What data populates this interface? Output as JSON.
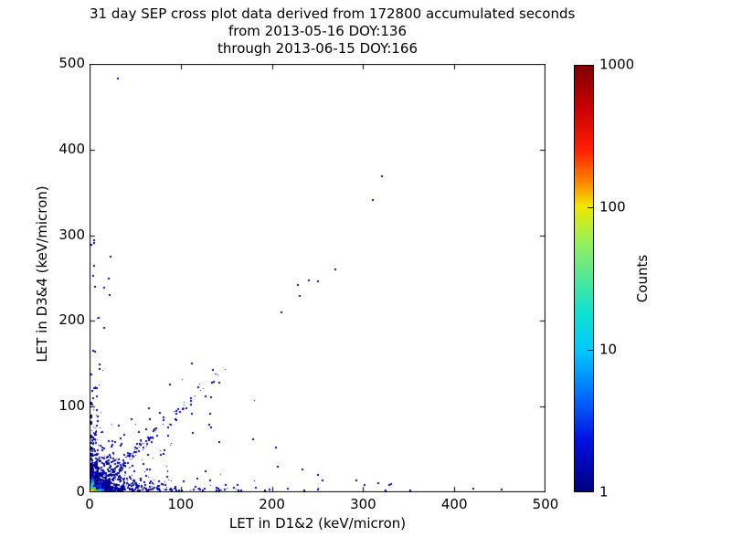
{
  "chart_data": {
    "type": "scatter",
    "title_lines": [
      "31 day SEP cross plot data derived from 172800 accumulated seconds",
      "from 2013-05-16 DOY:136",
      "through 2013-06-15 DOY:166"
    ],
    "xlabel": "LET in D1&2 (keV/micron)",
    "ylabel": "LET in D3&4 (keV/micron)",
    "xlim": [
      0,
      500
    ],
    "ylim": [
      0,
      500
    ],
    "x_ticks": [
      "0",
      "100",
      "200",
      "300",
      "400",
      "500"
    ],
    "y_ticks": [
      "0",
      "100",
      "200",
      "300",
      "400",
      "500"
    ],
    "grid": false,
    "background_color": "#ffffff",
    "point_color": "#00008b",
    "point_color_alt": "#0000c8",
    "point_color_bright": "#0048d8",
    "colorbar": {
      "label": "Counts",
      "scale": "log",
      "tick_labels": [
        "1000",
        "100",
        "10",
        "1"
      ],
      "tick_values": [
        1000,
        100,
        10,
        1
      ],
      "colormap": "jet",
      "gradient_stops_top_to_bottom": [
        {
          "pos": 0.0,
          "color": "#7f0000"
        },
        {
          "pos": 0.1,
          "color": "#c80000"
        },
        {
          "pos": 0.2,
          "color": "#ff2000"
        },
        {
          "pos": 0.28,
          "color": "#ff9000"
        },
        {
          "pos": 0.33,
          "color": "#f0e800"
        },
        {
          "pos": 0.42,
          "color": "#90f060"
        },
        {
          "pos": 0.5,
          "color": "#50e898"
        },
        {
          "pos": 0.58,
          "color": "#10e0d0"
        },
        {
          "pos": 0.67,
          "color": "#00c8ff"
        },
        {
          "pos": 0.78,
          "color": "#0068ff"
        },
        {
          "pos": 0.88,
          "color": "#0010e0"
        },
        {
          "pos": 1.0,
          "color": "#000080"
        }
      ]
    },
    "notable_points": [
      [
        30,
        483
      ],
      [
        320,
        369
      ],
      [
        310,
        341
      ],
      [
        269,
        260
      ],
      [
        239,
        247
      ],
      [
        249,
        246
      ],
      [
        227,
        242
      ],
      [
        229,
        229
      ],
      [
        209,
        210
      ],
      [
        4,
        294
      ],
      [
        4,
        291
      ],
      [
        22,
        275
      ],
      [
        3,
        253
      ],
      [
        20,
        250
      ],
      [
        5,
        240
      ],
      [
        15,
        239
      ],
      [
        21,
        230
      ],
      [
        9,
        204
      ],
      [
        15,
        192
      ],
      [
        5,
        164
      ],
      [
        10,
        149
      ],
      [
        10,
        144
      ],
      [
        111,
        150
      ],
      [
        134,
        143
      ],
      [
        133,
        128
      ],
      [
        126,
        112
      ],
      [
        132,
        111
      ],
      [
        110,
        102
      ],
      [
        131,
        92
      ],
      [
        94,
        84
      ],
      [
        80,
        87
      ],
      [
        76,
        93
      ],
      [
        132,
        76
      ],
      [
        85,
        66
      ],
      [
        105,
        98
      ],
      [
        130,
        79
      ],
      [
        178,
        62
      ],
      [
        203,
        52
      ],
      [
        205,
        30
      ],
      [
        232,
        27
      ],
      [
        249,
        20
      ],
      [
        255,
        14
      ],
      [
        292,
        14
      ],
      [
        301,
        8
      ],
      [
        316,
        11
      ],
      [
        328,
        8
      ],
      [
        330,
        10
      ],
      [
        324,
        2
      ],
      [
        338,
        1
      ],
      [
        351,
        2
      ],
      [
        363,
        1
      ],
      [
        420,
        4
      ],
      [
        451,
        3
      ],
      [
        470,
        1
      ]
    ],
    "hot_cells_near_origin": [
      {
        "x": 1,
        "y": 1,
        "color": "#f2e11c"
      },
      {
        "x": 4,
        "y": 1,
        "color": "#ffa000"
      },
      {
        "x": 1,
        "y": 4,
        "color": "#58d62a"
      },
      {
        "x": 4,
        "y": 4,
        "color": "#2fd96e"
      },
      {
        "x": 7,
        "y": 1,
        "color": "#00d9c0"
      },
      {
        "x": 1,
        "y": 7,
        "color": "#00c3ea"
      },
      {
        "x": 10,
        "y": 2,
        "color": "#19b8d8"
      },
      {
        "x": 2,
        "y": 10,
        "color": "#35bfe0"
      },
      {
        "x": 13,
        "y": 2,
        "color": "#2a6fe0"
      },
      {
        "x": 2,
        "y": 13,
        "color": "#2a6fe0"
      }
    ],
    "density_clusters": [
      {
        "name": "core",
        "n": 750,
        "x_scale": 9,
        "y_scale": 9,
        "x_max": 90,
        "y_max": 90
      },
      {
        "name": "halo",
        "n": 320,
        "x_scale": 26,
        "y_scale": 23,
        "x_max": 160,
        "y_max": 150
      },
      {
        "name": "diagonal-band",
        "n": 165,
        "t_scale": 45,
        "t_max": 150,
        "jitter": 5
      },
      {
        "name": "bottom-band",
        "n": 230,
        "x_scale": 85,
        "x_max": 355,
        "y_scale": 3,
        "y_max": 14
      },
      {
        "name": "left-band",
        "n": 140,
        "x_scale": 3,
        "x_max": 12,
        "y_scale": 65,
        "y_max": 305
      },
      {
        "name": "sparse-field",
        "n": 90,
        "x_scale": 55,
        "x_max": 260,
        "y_scale": 40,
        "y_max": 160
      }
    ]
  }
}
